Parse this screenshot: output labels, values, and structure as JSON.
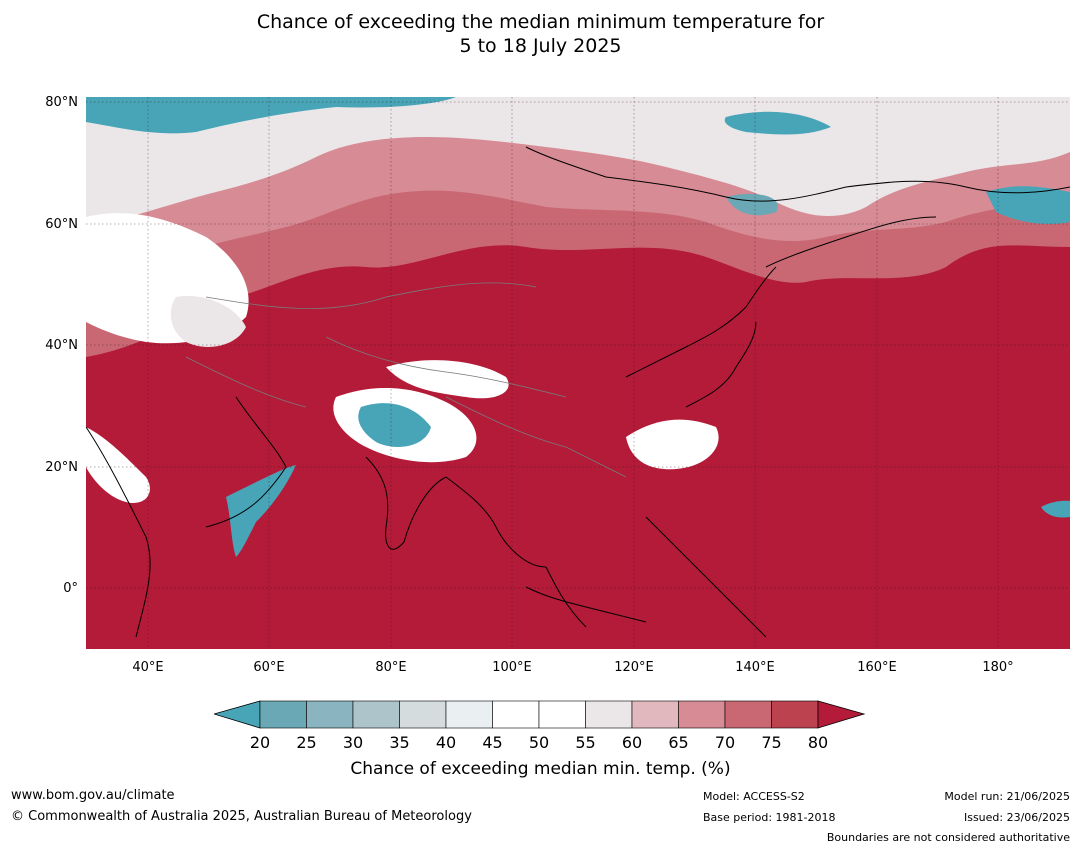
{
  "title_line1": "Chance of exceeding the median minimum temperature for",
  "title_line2": "5 to 18 July 2025",
  "lat_labels": [
    "80°N",
    "60°N",
    "40°N",
    "20°N",
    "0°"
  ],
  "lon_labels": [
    "40°E",
    "60°E",
    "80°E",
    "100°E",
    "120°E",
    "140°E",
    "160°E",
    "180°"
  ],
  "colorbar": {
    "title": "Chance of exceeding median min. temp. (%)",
    "ticks": [
      "20",
      "25",
      "30",
      "35",
      "40",
      "45",
      "50",
      "55",
      "60",
      "65",
      "70",
      "75",
      "80"
    ],
    "colors": [
      "#48a5b8",
      "#6aa8b5",
      "#89b4c0",
      "#adc4cb",
      "#d5dcdd",
      "#eaf0f1",
      "#ffffff",
      "#ffffff",
      "#ebe6e7",
      "#e0b8bd",
      "#d68b95",
      "#c96873",
      "#bc4250",
      "#b41b38"
    ]
  },
  "footer": {
    "website": "www.bom.gov.au/climate",
    "copyright": "© Commonwealth of Australia 2025, Australian Bureau of Meteorology",
    "model": "Model: ACCESS-S2",
    "base_period": "Base period: 1981-2018",
    "model_run": "Model run: 21/06/2025",
    "issued": "Issued: 23/06/2025",
    "boundaries": "Boundaries are not considered authoritative"
  }
}
